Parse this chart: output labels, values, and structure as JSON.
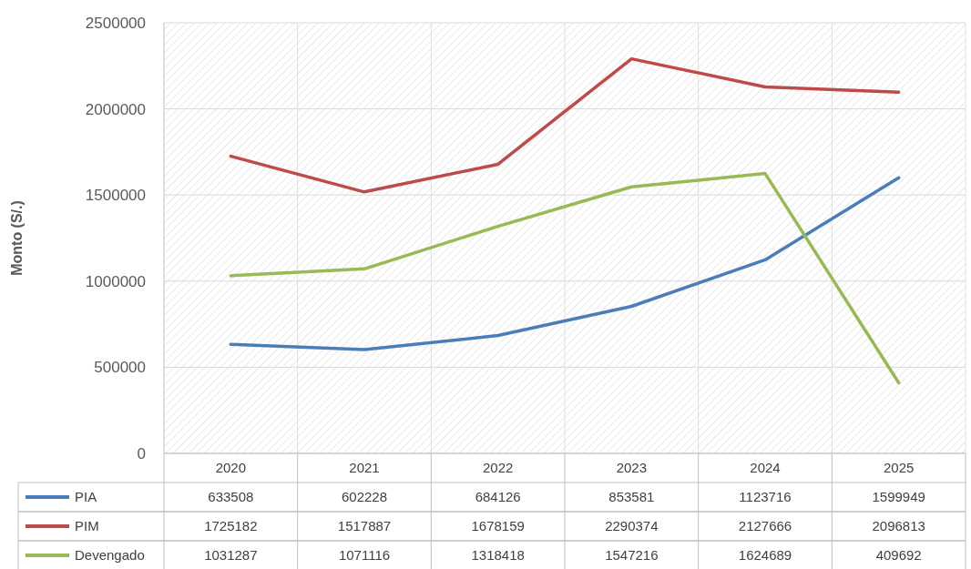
{
  "chart_data": {
    "type": "line",
    "ylabel": "Monto (S/.)",
    "categories": [
      "2020",
      "2021",
      "2022",
      "2023",
      "2024",
      "2025"
    ],
    "series": [
      {
        "name": "PIA",
        "color": "#4a7ebb",
        "values": [
          633508,
          602228,
          684126,
          853581,
          1123716,
          1599949
        ]
      },
      {
        "name": "PIM",
        "color": "#be4b48",
        "values": [
          1725182,
          1517887,
          1678159,
          2290374,
          2127666,
          2096813
        ]
      },
      {
        "name": "Devengado",
        "color": "#98b954",
        "values": [
          1031287,
          1071116,
          1318418,
          1547216,
          1624689,
          409692
        ]
      }
    ],
    "ylim": [
      0,
      2500000
    ],
    "yticks": [
      0,
      500000,
      1000000,
      1500000,
      2000000,
      2500000
    ],
    "grid": true,
    "legend": "bottom",
    "data_labels": true,
    "line_style": "solid"
  }
}
